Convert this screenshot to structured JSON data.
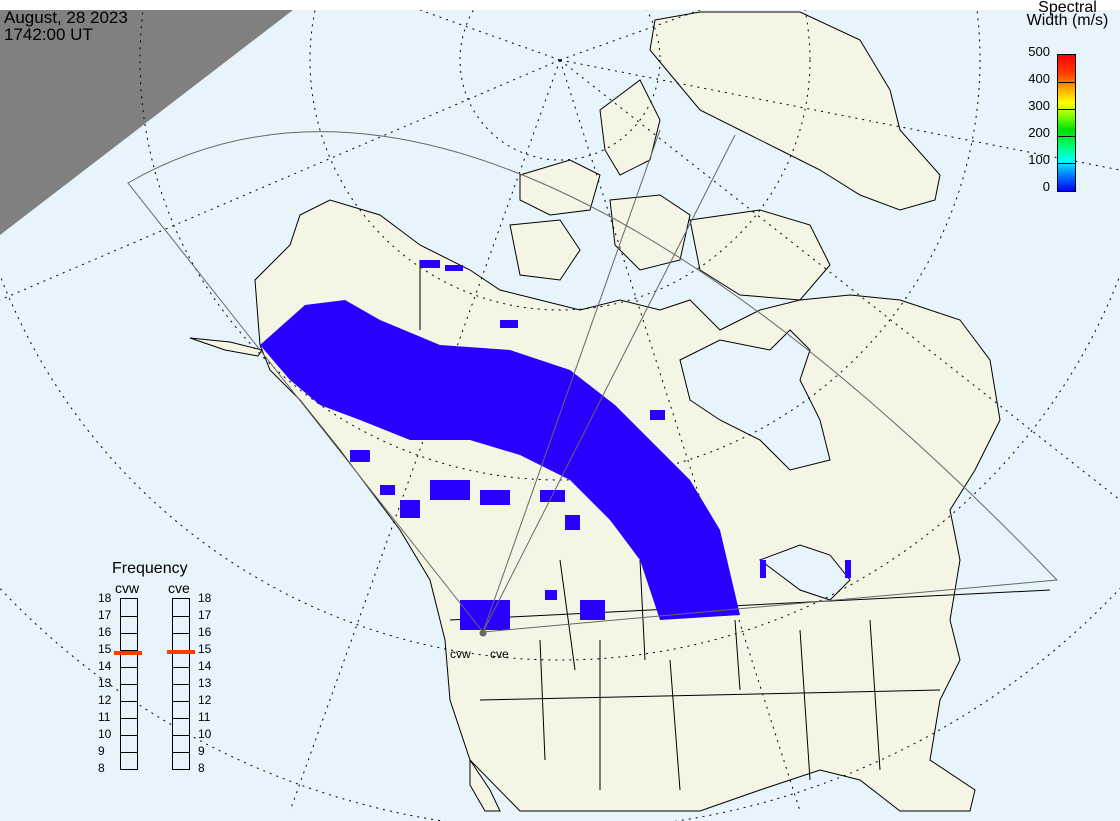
{
  "header": {
    "date": "August, 28 2023",
    "time": "1742:00 UT"
  },
  "colorbar": {
    "title_line1": "Spectral",
    "title_line2": "Width (m/s)",
    "ticks": [
      "500",
      "400",
      "300",
      "200",
      "100",
      "0"
    ],
    "range": [
      0,
      500
    ]
  },
  "frequency": {
    "title": "Frequency",
    "radars": [
      {
        "name": "cvw",
        "value_mhz": 14.8
      },
      {
        "name": "cve",
        "value_mhz": 14.9
      }
    ],
    "ticks": [
      "18",
      "17",
      "16",
      "15",
      "14",
      "13",
      "12",
      "11",
      "10",
      "9",
      "8"
    ],
    "range": [
      8,
      18
    ]
  },
  "sites": {
    "west": "cvw",
    "east": "cve"
  },
  "colors": {
    "ocean": "#e8f4fc",
    "land": "#f5f5e6",
    "night": "#808080",
    "scatter": "#2800ff",
    "freq_marker": "#ff3c00"
  }
}
